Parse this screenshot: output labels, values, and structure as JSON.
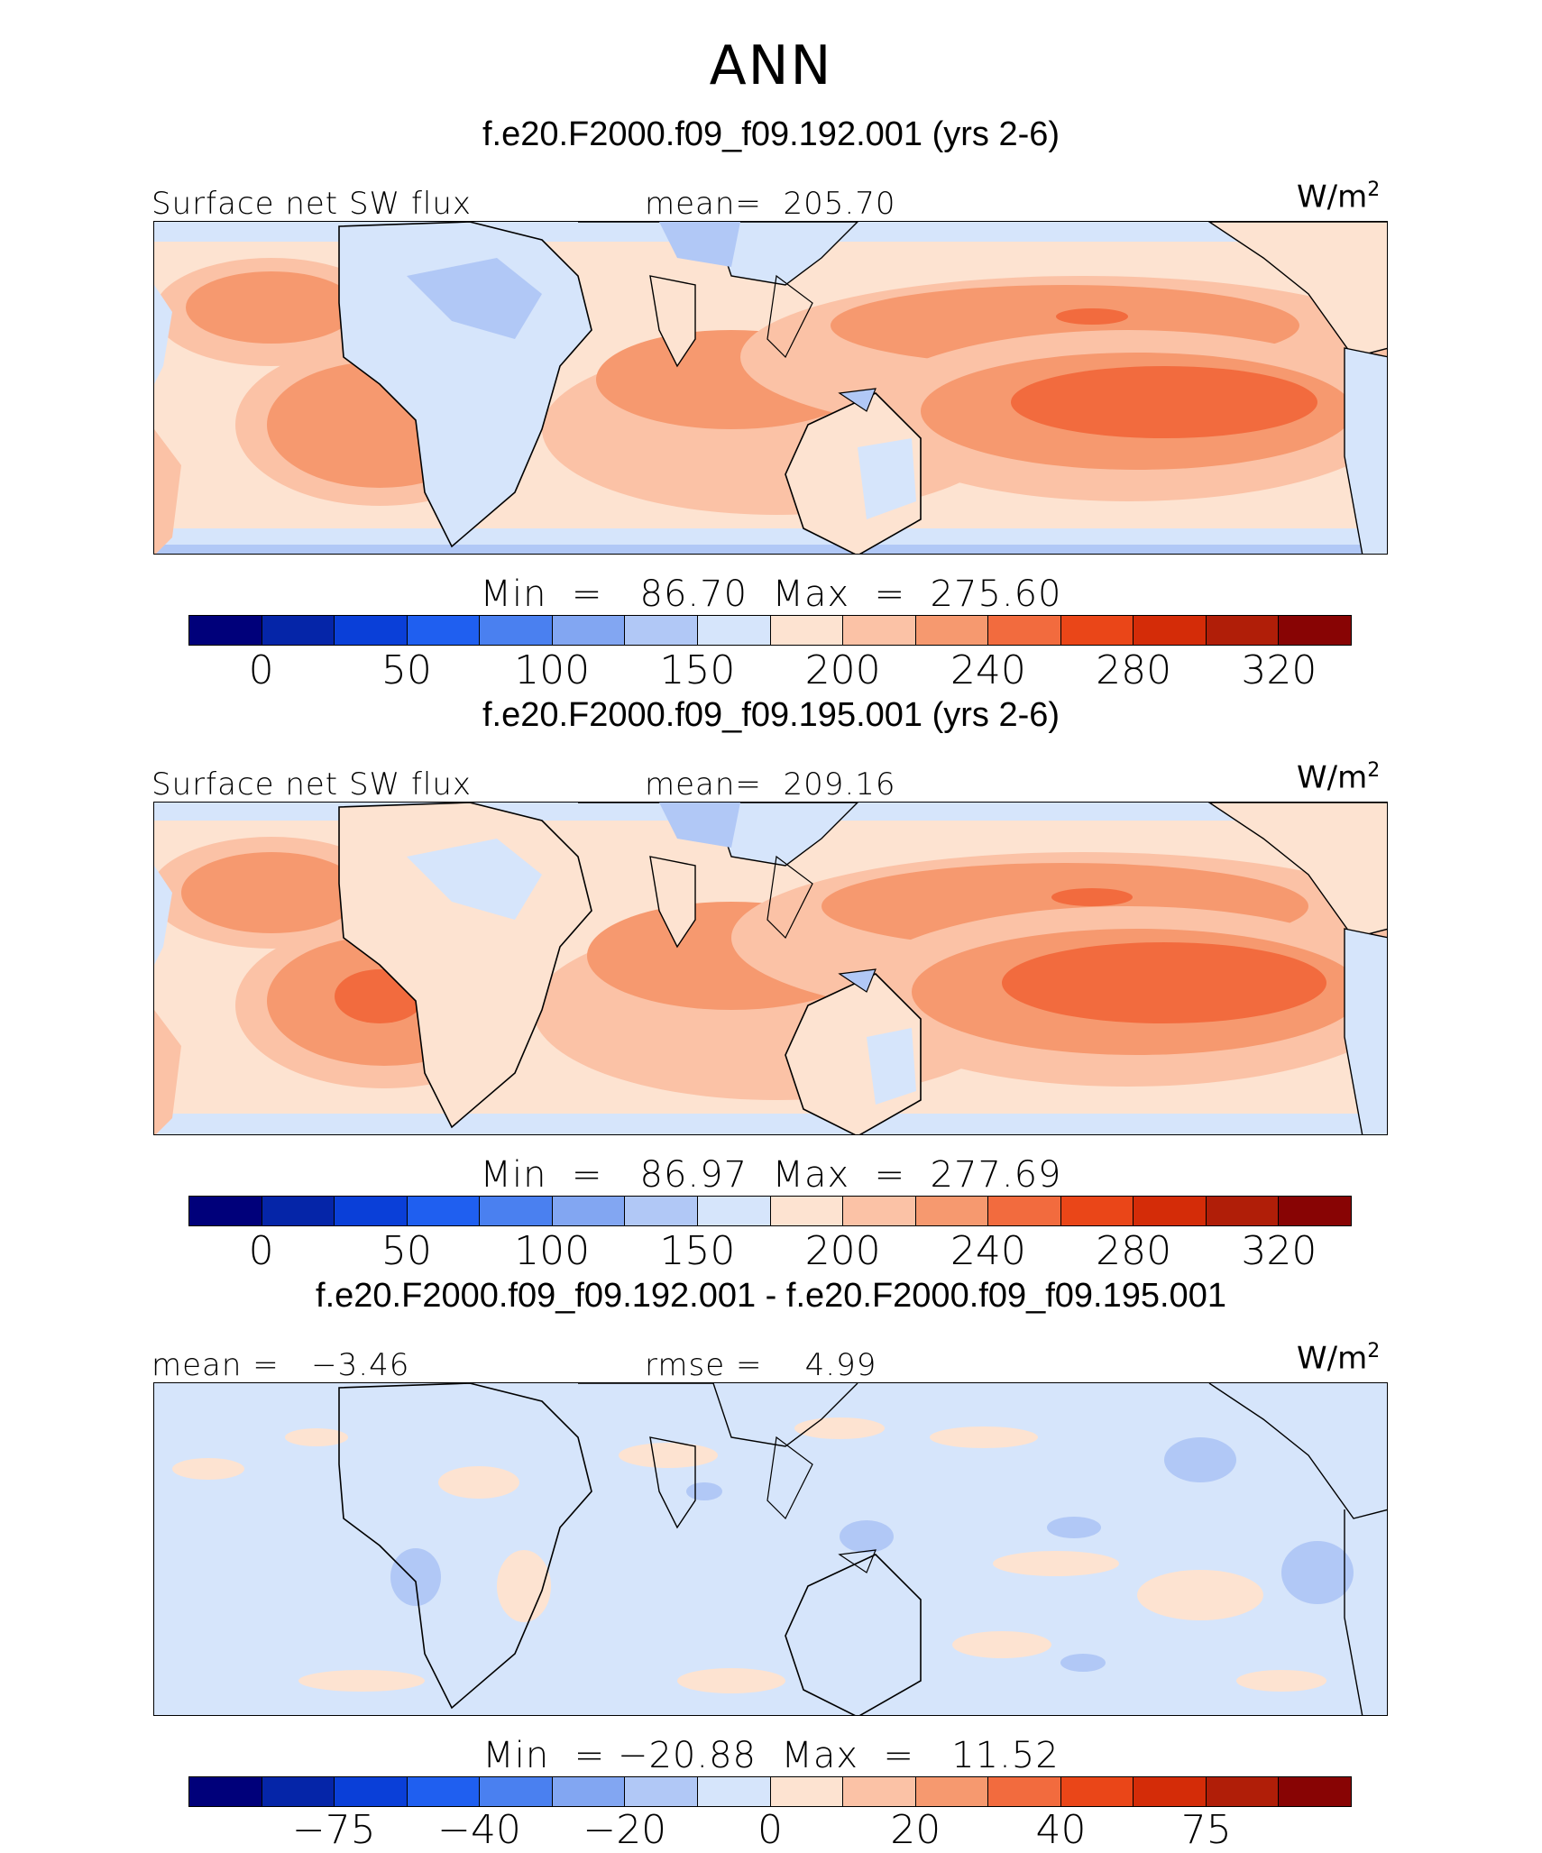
{
  "figure": {
    "title": "ANN"
  },
  "panels": [
    {
      "title": "f.e20.F2000.f09_f09.192.001 (yrs 2-6)",
      "left_label": "Surface net SW flux",
      "center_label": "mean=  205.70",
      "units": "W/m",
      "units_sup": "2",
      "minmax": "Min  =   86.70  Max  =  275.60",
      "colorbar": {
        "colors": [
          "#00007a",
          "#0525a8",
          "#0a3fd8",
          "#1f5ff0",
          "#4a80f0",
          "#82a6f2",
          "#b1c8f6",
          "#d6e5fb",
          "#fde3d1",
          "#fbc2a6",
          "#f6996f",
          "#f26b3e",
          "#ea4618",
          "#d42c08",
          "#b01e08",
          "#880404"
        ],
        "ticks": [
          "0",
          "50",
          "100",
          "150",
          "200",
          "240",
          "280",
          "320"
        ]
      }
    },
    {
      "title": "f.e20.F2000.f09_f09.195.001 (yrs 2-6)",
      "left_label": "Surface net SW flux",
      "center_label": "mean=  209.16",
      "units": "W/m",
      "units_sup": "2",
      "minmax": "Min  =   86.97  Max  =  277.69",
      "colorbar": {
        "colors": [
          "#00007a",
          "#0525a8",
          "#0a3fd8",
          "#1f5ff0",
          "#4a80f0",
          "#82a6f2",
          "#b1c8f6",
          "#d6e5fb",
          "#fde3d1",
          "#fbc2a6",
          "#f6996f",
          "#f26b3e",
          "#ea4618",
          "#d42c08",
          "#b01e08",
          "#880404"
        ],
        "ticks": [
          "0",
          "50",
          "100",
          "150",
          "200",
          "240",
          "280",
          "320"
        ]
      }
    },
    {
      "title": "f.e20.F2000.f09_f09.192.001 - f.e20.F2000.f09_f09.195.001",
      "left_label": "mean =   −3.46",
      "center_label": "rmse =    4.99",
      "units": "W/m",
      "units_sup": "2",
      "minmax": "Min  = −20.88  Max  =   11.52",
      "colorbar": {
        "colors": [
          "#00007a",
          "#0525a8",
          "#0a3fd8",
          "#1f5ff0",
          "#4a80f0",
          "#82a6f2",
          "#b1c8f6",
          "#d6e5fb",
          "#fde3d1",
          "#fbc2a6",
          "#f6996f",
          "#f26b3e",
          "#ea4618",
          "#d42c08",
          "#b01e08",
          "#880404"
        ],
        "ticks": [
          "−75",
          "−40",
          "−20",
          "0",
          "20",
          "40",
          "75"
        ]
      }
    }
  ]
}
